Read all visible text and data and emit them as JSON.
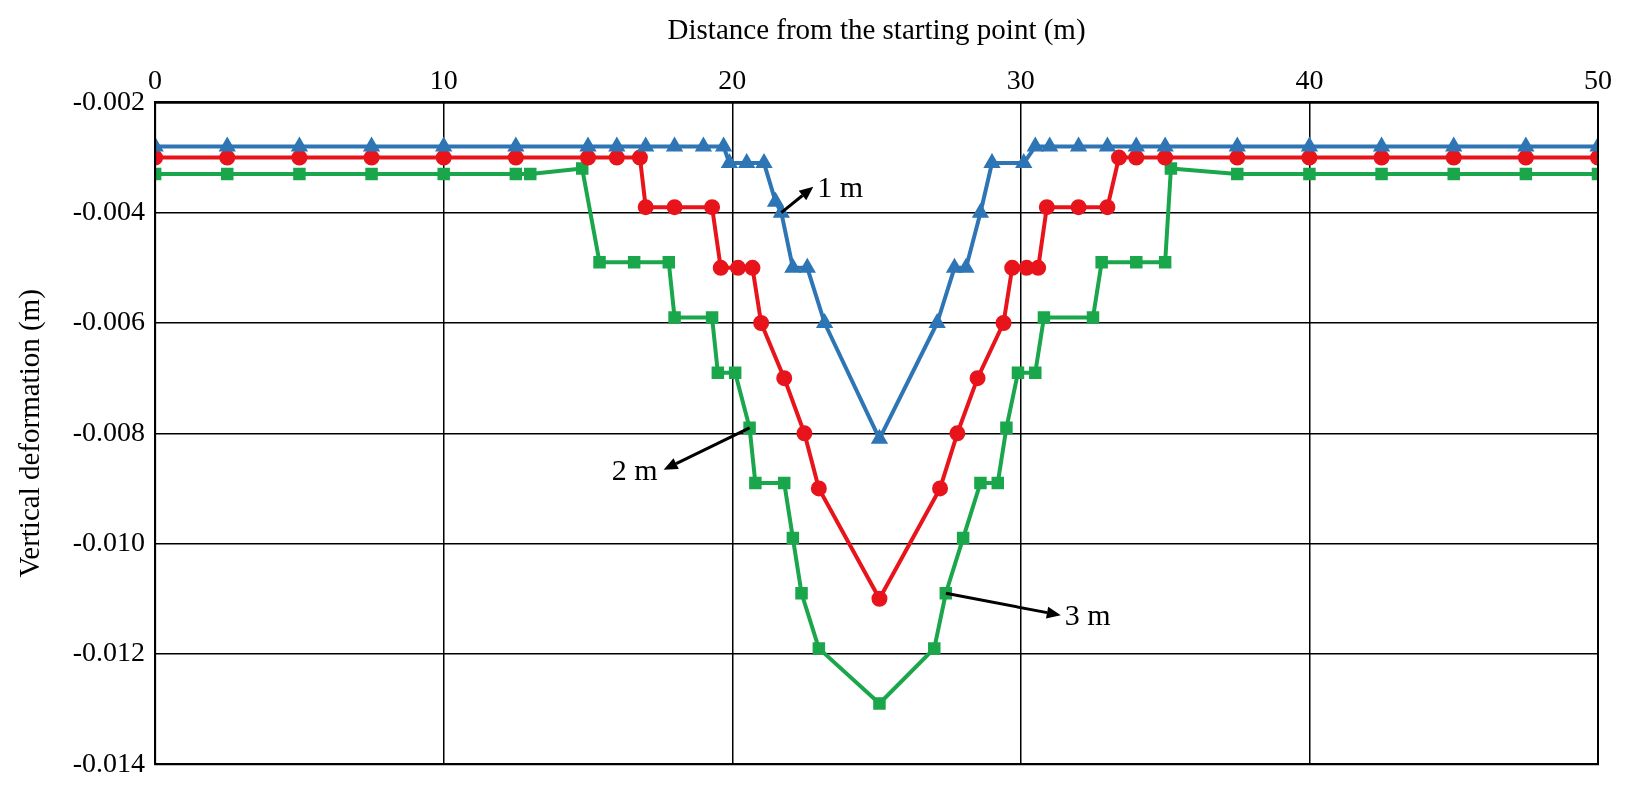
{
  "chart_data": {
    "type": "line",
    "xlabel": "Distance from the starting point (m)",
    "ylabel": "Vertical deformation (m)",
    "xlim": [
      0,
      50
    ],
    "xticks": [
      0,
      10,
      20,
      30,
      40,
      50
    ],
    "ylim": [
      -0.014,
      -0.002
    ],
    "yticks": [
      {
        "value": -0.014,
        "label": "-0.014"
      },
      {
        "value": -0.012,
        "label": "-0.012"
      },
      {
        "value": -0.01,
        "label": "-0.010"
      },
      {
        "value": -0.008,
        "label": "-0.008"
      },
      {
        "value": -0.006,
        "label": "-0.006"
      },
      {
        "value": -0.004,
        "label": "-0.004"
      },
      {
        "value": -0.002,
        "label": "-0.002"
      }
    ],
    "grid": true,
    "legend": false,
    "line_style": "solid",
    "series": [
      {
        "color": "#2e75b6",
        "marker": "triangle",
        "x": [
          0,
          2.5,
          5,
          7.5,
          10,
          12.5,
          15,
          16,
          17,
          18,
          19,
          19.7,
          19.9,
          20.5,
          21.1,
          21.5,
          21.7,
          22.1,
          22.6,
          23.2,
          25.1,
          27.1,
          27.7,
          28.1,
          28.6,
          29,
          30.1,
          30.5,
          31,
          32,
          33,
          34,
          35,
          37.5,
          40,
          42.5,
          45,
          47.5,
          50
        ],
        "values": [
          -0.0028,
          -0.0028,
          -0.0028,
          -0.0028,
          -0.0028,
          -0.0028,
          -0.0028,
          -0.0028,
          -0.0028,
          -0.0028,
          -0.0028,
          -0.0028,
          -0.0031,
          -0.0031,
          -0.0031,
          -0.0038,
          -0.004,
          -0.005,
          -0.005,
          -0.006,
          -0.0081,
          -0.006,
          -0.005,
          -0.005,
          -0.004,
          -0.0031,
          -0.0031,
          -0.0028,
          -0.0028,
          -0.0028,
          -0.0028,
          -0.0028,
          -0.0028,
          -0.0028,
          -0.0028,
          -0.0028,
          -0.0028,
          -0.0028,
          -0.0028
        ]
      },
      {
        "color": "#e8141b",
        "marker": "circle",
        "x": [
          0,
          2.5,
          5,
          7.5,
          10,
          12.5,
          15,
          16,
          16.8,
          17,
          18,
          19.3,
          19.6,
          20.2,
          20.7,
          21,
          21.8,
          22.5,
          23,
          25.1,
          27.2,
          27.8,
          28.5,
          29.4,
          29.7,
          30.2,
          30.6,
          30.9,
          32,
          33,
          33.4,
          34,
          35,
          37.5,
          40,
          42.5,
          45,
          47.5,
          50
        ],
        "values": [
          -0.003,
          -0.003,
          -0.003,
          -0.003,
          -0.003,
          -0.003,
          -0.003,
          -0.003,
          -0.003,
          -0.0039,
          -0.0039,
          -0.0039,
          -0.005,
          -0.005,
          -0.005,
          -0.006,
          -0.007,
          -0.008,
          -0.009,
          -0.011,
          -0.009,
          -0.008,
          -0.007,
          -0.006,
          -0.005,
          -0.005,
          -0.005,
          -0.0039,
          -0.0039,
          -0.0039,
          -0.003,
          -0.003,
          -0.003,
          -0.003,
          -0.003,
          -0.003,
          -0.003,
          -0.003,
          -0.003
        ]
      },
      {
        "color": "#1aa64b",
        "marker": "square",
        "x": [
          0,
          2.5,
          5,
          7.5,
          10,
          12.5,
          13,
          14.8,
          15.4,
          16.6,
          17.8,
          18,
          19.3,
          19.5,
          20.1,
          20.6,
          20.8,
          21.8,
          22.1,
          22.4,
          23,
          25.1,
          27,
          27.4,
          28,
          28.6,
          29.2,
          29.5,
          29.9,
          30.5,
          30.8,
          32.5,
          32.8,
          34,
          35,
          35.2,
          37.5,
          40,
          42.5,
          45,
          47.5,
          50
        ],
        "values": [
          -0.0033,
          -0.0033,
          -0.0033,
          -0.0033,
          -0.0033,
          -0.0033,
          -0.0033,
          -0.0032,
          -0.0049,
          -0.0049,
          -0.0049,
          -0.0059,
          -0.0059,
          -0.0069,
          -0.0069,
          -0.0079,
          -0.0089,
          -0.0089,
          -0.0099,
          -0.0109,
          -0.0119,
          -0.0129,
          -0.0119,
          -0.0109,
          -0.0099,
          -0.0089,
          -0.0089,
          -0.0079,
          -0.0069,
          -0.0069,
          -0.0059,
          -0.0059,
          -0.0049,
          -0.0049,
          -0.0049,
          -0.0032,
          -0.0033,
          -0.0033,
          -0.0033,
          -0.0033,
          -0.0033,
          -0.0033
        ]
      }
    ],
    "annotations": [
      {
        "text": "1 m",
        "x": 21.7,
        "y": -0.004
      },
      {
        "text": "2 m",
        "x": 20.6,
        "y": -0.0079
      },
      {
        "text": "3 m",
        "x": 27.4,
        "y": -0.0109
      }
    ]
  }
}
